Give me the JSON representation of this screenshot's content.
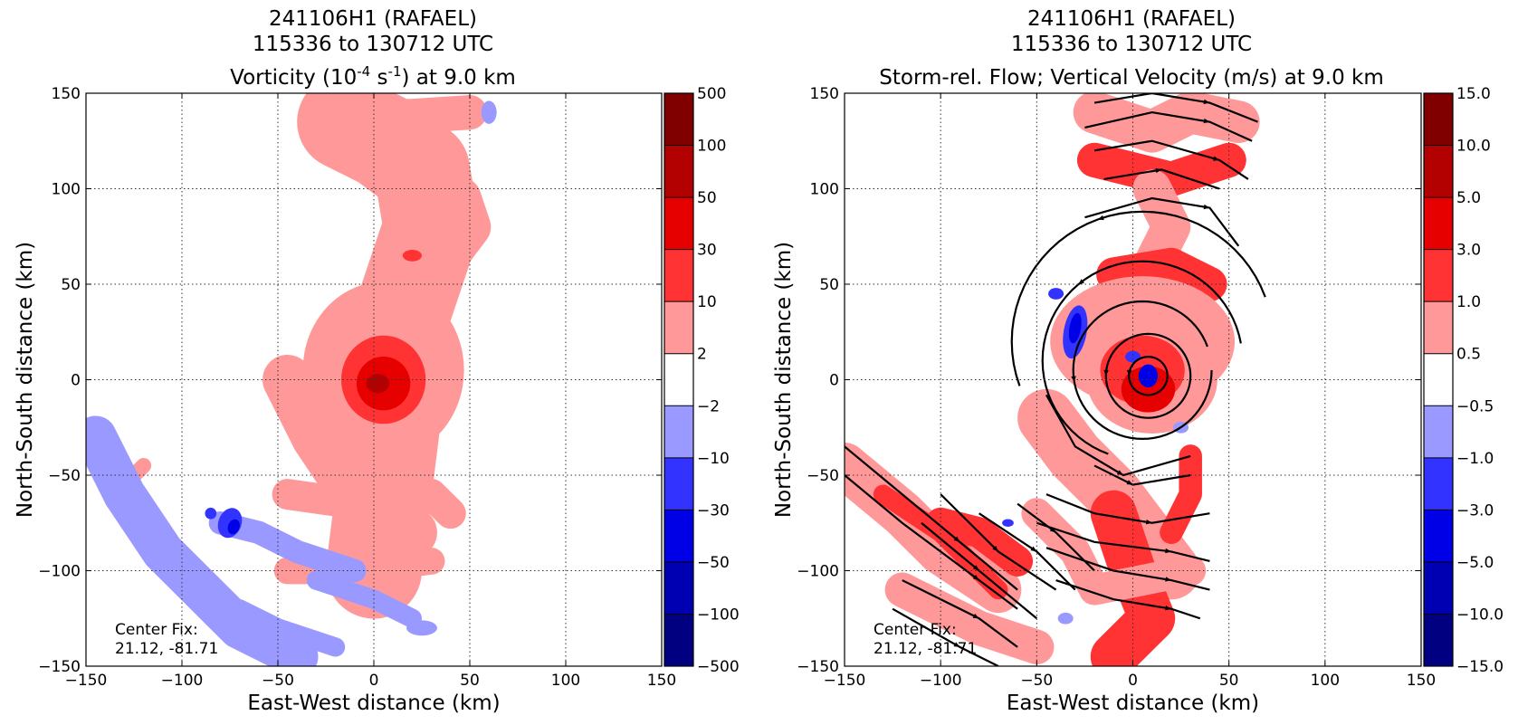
{
  "chart_data": [
    {
      "type": "contour",
      "title": [
        "241106H1 (RAFAEL)",
        "115336 to 130712 UTC"
      ],
      "subtitle": {
        "pre": "Vorticity (10",
        "sup1": "-4",
        "mid": " s",
        "sup2": "-1",
        "post": ") at 9.0 km"
      },
      "xlabel": "East-West distance (km)",
      "ylabel": "North-South distance (km)",
      "xlim": [
        -150,
        150
      ],
      "ylim": [
        -150,
        150
      ],
      "xticks": [
        -150,
        -100,
        -50,
        0,
        50,
        100,
        150
      ],
      "yticks": [
        -150,
        -100,
        -50,
        0,
        50,
        100,
        150
      ],
      "xtick_labels": [
        "−150",
        "−100",
        "−50",
        "0",
        "50",
        "100",
        "150"
      ],
      "ytick_labels": [
        "−150",
        "−100",
        "−50",
        "0",
        "50",
        "100",
        "150"
      ],
      "grid": true,
      "colorbar": {
        "levels": [
          "500",
          "100",
          "50",
          "30",
          "10",
          "2",
          "−2",
          "−10",
          "−30",
          "−50",
          "−100",
          "−500"
        ],
        "colors": [
          "#800000",
          "#b30000",
          "#e60000",
          "#ff3333",
          "#ff9999",
          "#ffffff",
          "#9999ff",
          "#3333ff",
          "#0000e6",
          "#0000b3",
          "#000080"
        ]
      },
      "annotation": [
        "Center Fix:",
        "21.12, -81.71"
      ]
    },
    {
      "type": "contour+streamline",
      "title": [
        "241106H1 (RAFAEL)",
        "115336 to 130712 UTC"
      ],
      "subtitle": {
        "pre": "Storm-rel. Flow; Vertical Velocity (m/s) at 9.0 km",
        "sup1": "",
        "mid": "",
        "sup2": "",
        "post": ""
      },
      "xlabel": "East-West distance (km)",
      "ylabel": "North-South distance (km)",
      "xlim": [
        -150,
        150
      ],
      "ylim": [
        -150,
        150
      ],
      "xticks": [
        -150,
        -100,
        -50,
        0,
        50,
        100,
        150
      ],
      "yticks": [
        -150,
        -100,
        -50,
        0,
        50,
        100,
        150
      ],
      "xtick_labels": [
        "−150",
        "−100",
        "−50",
        "0",
        "50",
        "100",
        "150"
      ],
      "ytick_labels": [
        "−150",
        "−100",
        "−50",
        "0",
        "50",
        "100",
        "150"
      ],
      "grid": true,
      "colorbar": {
        "levels": [
          "15.0",
          "10.0",
          "5.0",
          "3.0",
          "1.0",
          "0.5",
          "−0.5",
          "−1.0",
          "−3.0",
          "−5.0",
          "−10.0",
          "−15.0"
        ],
        "colors": [
          "#800000",
          "#b30000",
          "#e60000",
          "#ff3333",
          "#ff9999",
          "#ffffff",
          "#9999ff",
          "#3333ff",
          "#0000e6",
          "#0000b3",
          "#000080"
        ]
      },
      "annotation": [
        "Center Fix:",
        "21.12, -81.71"
      ]
    }
  ]
}
